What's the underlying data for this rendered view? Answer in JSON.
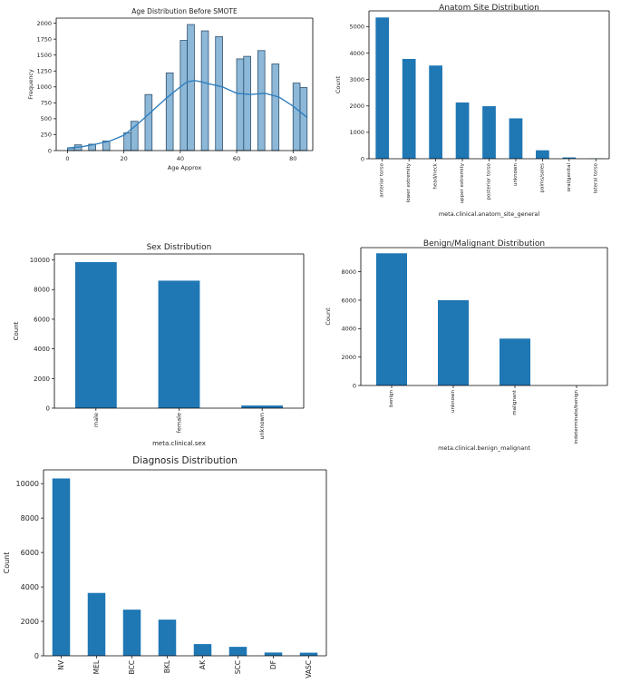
{
  "colors": {
    "bar": "#1f77b4",
    "hist_fill": "#8db8d8",
    "hist_edge": "#30506e",
    "kde": "#2f7fbf",
    "axis": "#000000"
  },
  "chart_data": [
    {
      "id": "age",
      "type": "bar",
      "variant": "histogram",
      "title": "Age Distribution Before SMOTE",
      "xlabel": "Age Approx",
      "ylabel": "Frequency",
      "xlim": [
        -4,
        87
      ],
      "ylim": [
        0,
        2080
      ],
      "xticks": [
        0,
        20,
        40,
        60,
        80
      ],
      "yticks": [
        0,
        250,
        500,
        750,
        1000,
        1250,
        1500,
        1750,
        2000
      ],
      "bin_width": 2.5,
      "bins": [
        0,
        2.5,
        5,
        7.5,
        10,
        12.5,
        15,
        17.5,
        20,
        22.5,
        25,
        27.5,
        30,
        32.5,
        35,
        37.5,
        40,
        42.5,
        45,
        47.5,
        50,
        52.5,
        55,
        57.5,
        60,
        62.5,
        65,
        67.5,
        70,
        72.5,
        75,
        77.5,
        80,
        82.5
      ],
      "counts": [
        40,
        90,
        0,
        100,
        0,
        150,
        0,
        0,
        280,
        460,
        0,
        880,
        0,
        0,
        1220,
        0,
        1730,
        1980,
        0,
        1880,
        0,
        1790,
        0,
        0,
        1440,
        1480,
        0,
        1570,
        0,
        1360,
        0,
        0,
        1060,
        990
      ],
      "kde": {
        "x": [
          0,
          5,
          10,
          15,
          20,
          25,
          30,
          35,
          40,
          42.5,
          45,
          47.5,
          50,
          55,
          60,
          65,
          70,
          75,
          80,
          85
        ],
        "y": [
          40,
          60,
          100,
          150,
          240,
          420,
          620,
          820,
          1000,
          1080,
          1100,
          1080,
          1050,
          1000,
          900,
          880,
          900,
          840,
          700,
          520
        ]
      }
    },
    {
      "id": "site",
      "type": "bar",
      "title": "Anatom Site Distribution",
      "xlabel": "meta.clinical.anatom_site_general",
      "ylabel": "Count",
      "ylim": [
        0,
        5600
      ],
      "yticks": [
        0,
        1000,
        2000,
        3000,
        4000,
        5000
      ],
      "categories": [
        "anterior torso",
        "lower extremity",
        "head/neck",
        "upper extremity",
        "posterior torso",
        "unknown",
        "palms/soles",
        "oral/genital",
        "lateral torso"
      ],
      "values": [
        5350,
        3780,
        3530,
        2130,
        1990,
        1530,
        320,
        50,
        10
      ]
    },
    {
      "id": "sex",
      "type": "bar",
      "title": "Sex Distribution",
      "xlabel": "meta.clinical.sex",
      "ylabel": "Count",
      "ylim": [
        0,
        10400
      ],
      "yticks": [
        0,
        2000,
        4000,
        6000,
        8000,
        10000
      ],
      "categories": [
        "male",
        "female",
        "unknown"
      ],
      "values": [
        9850,
        8600,
        180
      ]
    },
    {
      "id": "benign",
      "type": "bar",
      "title": "Benign/Malignant Distribution",
      "xlabel": "meta.clinical.benign_malignant",
      "ylabel": "Count",
      "ylim": [
        0,
        9700
      ],
      "yticks": [
        0,
        2000,
        4000,
        6000,
        8000
      ],
      "categories": [
        "benign",
        "unknown",
        "malignant",
        "indeterminate/benign"
      ],
      "values": [
        9300,
        6000,
        3300,
        10
      ]
    },
    {
      "id": "diag",
      "type": "bar",
      "title": "Diagnosis Distribution",
      "xlabel": "",
      "ylabel": "Count",
      "ylim": [
        0,
        10800
      ],
      "yticks": [
        0,
        2000,
        4000,
        6000,
        8000,
        10000
      ],
      "categories": [
        "NV",
        "MEL",
        "BCC",
        "BKL",
        "AK",
        "SCC",
        "DF",
        "VASC"
      ],
      "values": [
        10300,
        3650,
        2680,
        2100,
        680,
        520,
        190,
        180
      ]
    }
  ]
}
